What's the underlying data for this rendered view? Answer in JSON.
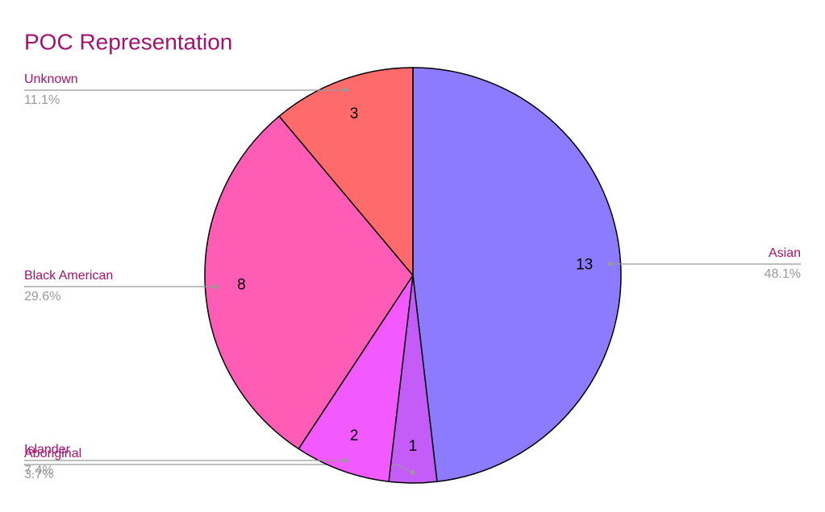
{
  "chart_data": {
    "type": "pie",
    "title": "POC Representation",
    "categories": [
      "Asian",
      "Aboriginal",
      "Islander",
      "Black American",
      "Unknown"
    ],
    "values": [
      13,
      1,
      2,
      8,
      3
    ],
    "percent_labels": [
      "48.1%",
      "3.7%",
      "7.4%",
      "29.6%",
      "11.1%"
    ],
    "colors": [
      "#8c7bff",
      "#c45cf7",
      "#f25aff",
      "#ff5cb5",
      "#ff6b6b"
    ]
  }
}
